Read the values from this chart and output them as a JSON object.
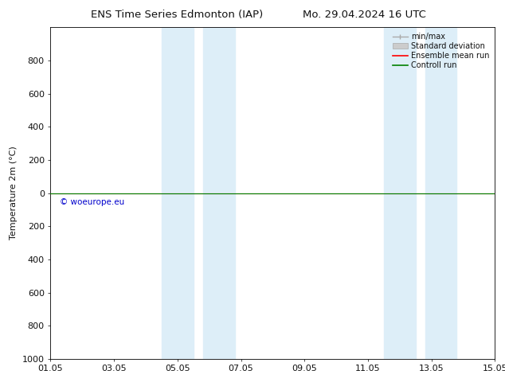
{
  "title_left": "ENS Time Series Edmonton (IAP)",
  "title_right": "Mo. 29.04.2024 16 UTC",
  "ylabel": "Temperature 2m (°C)",
  "ylim_top": -1000,
  "ylim_bottom": 1000,
  "yticks": [
    -800,
    -600,
    -400,
    -200,
    0,
    200,
    400,
    600,
    800,
    1000
  ],
  "xtick_labels": [
    "01.05",
    "03.05",
    "05.05",
    "07.05",
    "09.05",
    "11.05",
    "13.05",
    "15.05"
  ],
  "xtick_positions": [
    0,
    2,
    4,
    6,
    8,
    10,
    12,
    14
  ],
  "shaded_bands": [
    {
      "x_start": 3.5,
      "x_end": 4.5
    },
    {
      "x_start": 4.8,
      "x_end": 5.8
    },
    {
      "x_start": 10.5,
      "x_end": 11.5
    },
    {
      "x_start": 11.8,
      "x_end": 12.8
    }
  ],
  "shade_color": "#ddeef8",
  "green_line_y": 0,
  "green_line_color": "#008000",
  "red_line_color": "#ff0000",
  "watermark_text": "© woeurope.eu",
  "watermark_color": "#0000cc",
  "legend_labels": [
    "min/max",
    "Standard deviation",
    "Ensemble mean run",
    "Controll run"
  ],
  "background_color": "#ffffff",
  "font_color": "#111111",
  "font_size": 8,
  "title_font_size": 9.5
}
